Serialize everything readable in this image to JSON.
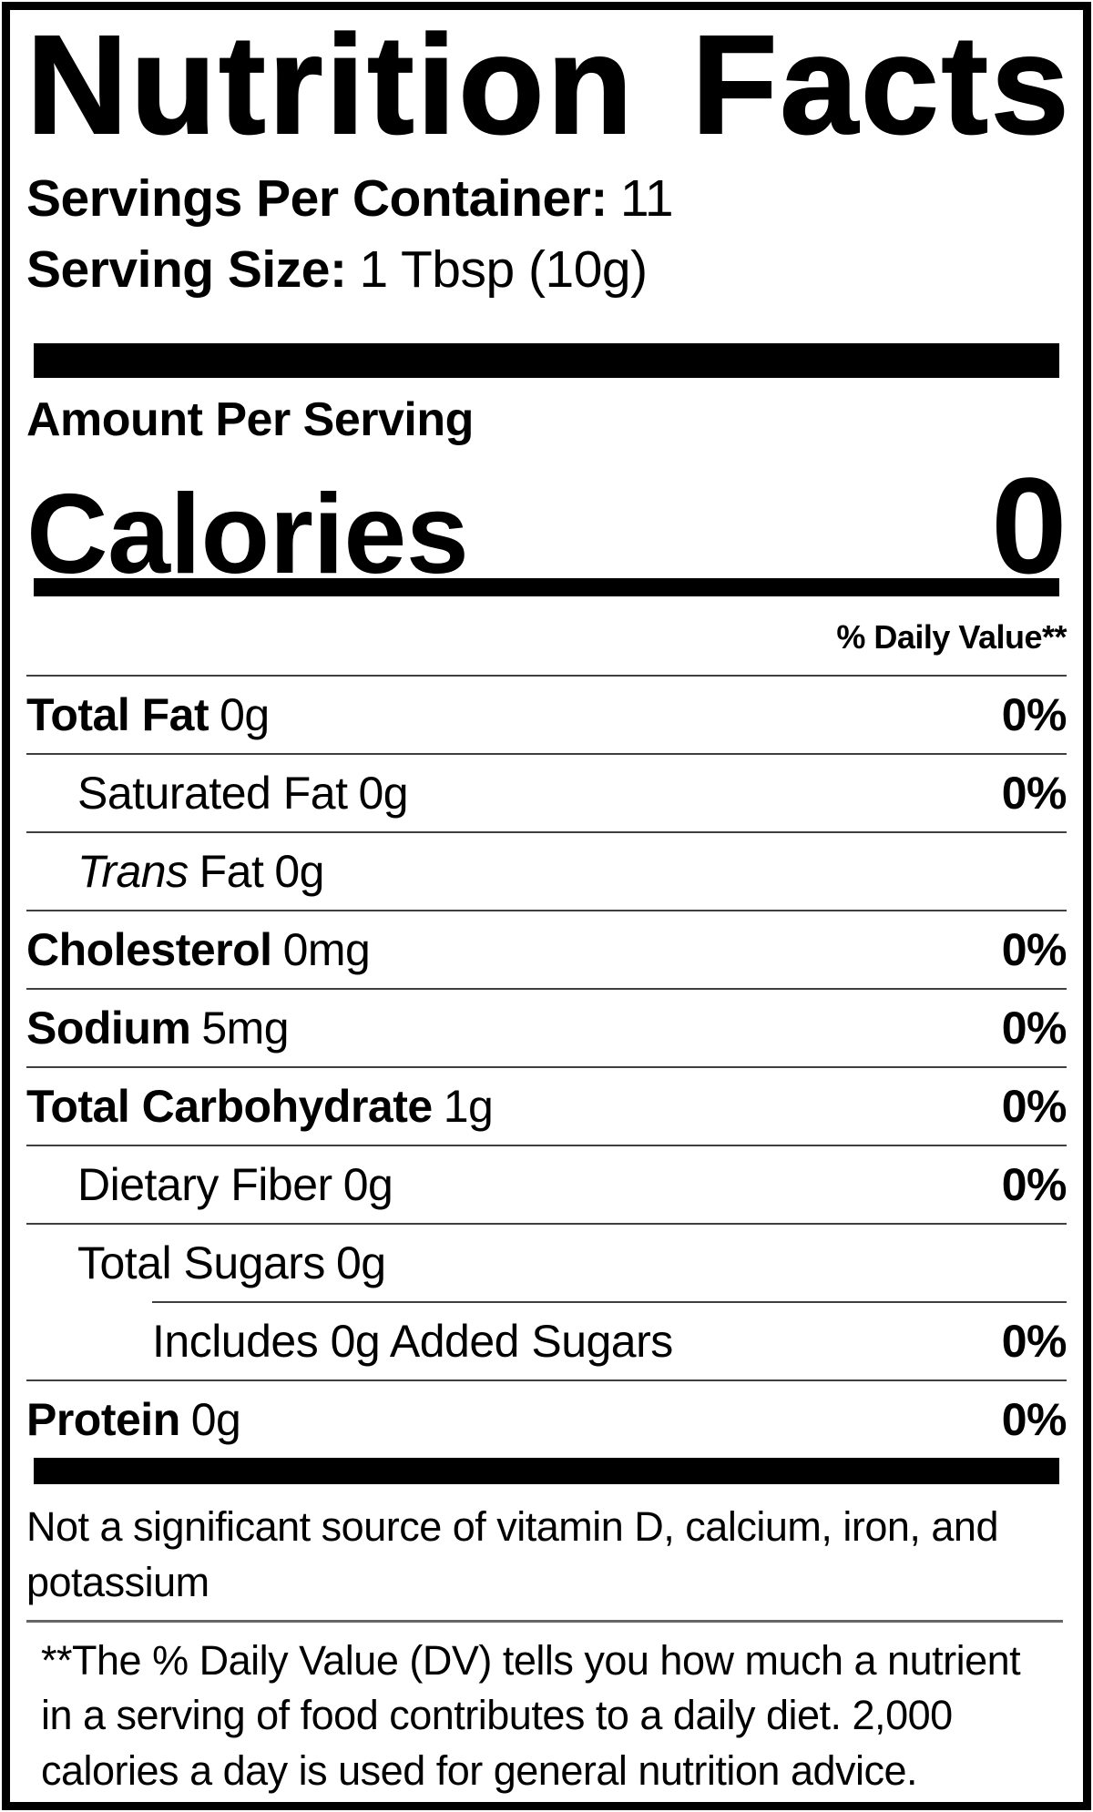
{
  "title": "Nutrition Facts",
  "servings_per_container": {
    "label": "Servings Per Container:",
    "value": "11"
  },
  "serving_size": {
    "label": "Serving Size:",
    "value": "1 Tbsp (10g)"
  },
  "amount_per_serving": "Amount Per Serving",
  "calories": {
    "label": "Calories",
    "value": "0"
  },
  "daily_value_header": "% Daily Value**",
  "nutrients": [
    {
      "name": "Total Fat",
      "amount": "0g",
      "dv": "0%"
    },
    {
      "name": "Saturated Fat",
      "amount": "0g",
      "dv": "0%"
    },
    {
      "name_italic": "Trans",
      "name": "Fat",
      "amount": "0g",
      "dv": ""
    },
    {
      "name": "Cholesterol",
      "amount": "0mg",
      "dv": "0%"
    },
    {
      "name": "Sodium",
      "amount": "5mg",
      "dv": "0%"
    },
    {
      "name": "Total Carbohydrate",
      "amount": "1g",
      "dv": "0%"
    },
    {
      "name": "Dietary Fiber",
      "amount": "0g",
      "dv": "0%"
    },
    {
      "name": "Total Sugars",
      "amount": "0g",
      "dv": ""
    },
    {
      "name": "Includes 0g Added Sugars",
      "amount": "",
      "dv": "0%"
    },
    {
      "name": "Protein",
      "amount": "0g",
      "dv": "0%"
    }
  ],
  "insignificant_note": "Not a significant source of vitamin D, calcium, iron, and potassium",
  "footnote": "**The % Daily Value (DV) tells you how much a nutrient in a serving of food contributes to a daily diet. 2,000 calories a day is used for general nutrition advice.",
  "colors": {
    "background": "#ffffff",
    "text": "#000000",
    "hairline": "#3f3f3f",
    "footnote_divider": "#666666"
  }
}
